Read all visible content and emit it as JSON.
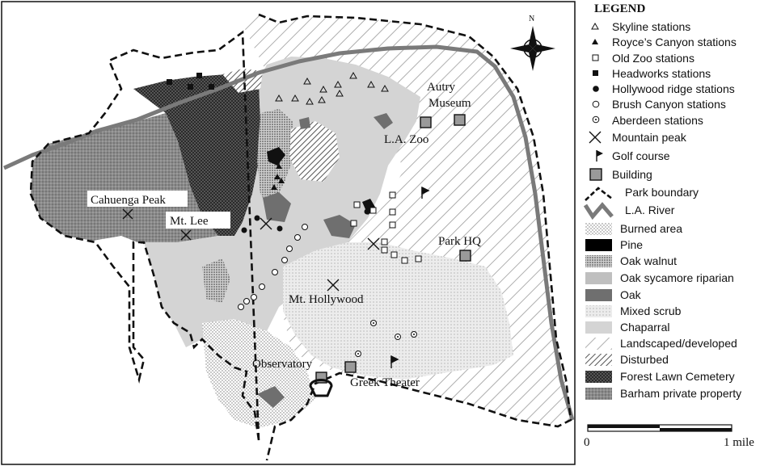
{
  "legend": {
    "title": "LEGEND",
    "items": [
      {
        "label": "Skyline stations",
        "symbol": "triangle-open-icon"
      },
      {
        "label": "Royce’s Canyon stations",
        "symbol": "triangle-filled-icon"
      },
      {
        "label": "Old Zoo stations",
        "symbol": "square-open-icon"
      },
      {
        "label": "Headworks stations",
        "symbol": "square-filled-icon"
      },
      {
        "label": "Hollywood ridge stations",
        "symbol": "circle-filled-icon"
      },
      {
        "label": "Brush Canyon stations",
        "symbol": "circle-open-icon"
      },
      {
        "label": "Aberdeen stations",
        "symbol": "circle-dot-icon"
      },
      {
        "label": "Mountain peak",
        "symbol": "x-cross-icon"
      },
      {
        "label": "Golf course",
        "symbol": "flag-icon"
      },
      {
        "label": "Building",
        "symbol": "building-square-icon"
      },
      {
        "label": "Park boundary",
        "symbol": "dashed-boundary-icon"
      },
      {
        "label": "L.A. River",
        "symbol": "zigzag-river-icon"
      },
      {
        "label": "Burned area",
        "symbol": "stipple-fine-swatch"
      },
      {
        "label": "Pine",
        "symbol": "black-swatch"
      },
      {
        "label": "Oak walnut",
        "symbol": "stipple-dense-swatch"
      },
      {
        "label": "Oak sycamore riparian",
        "symbol": "gray-light-swatch"
      },
      {
        "label": "Oak",
        "symbol": "gray-dark-swatch"
      },
      {
        "label": "Mixed scrub",
        "symbol": "stipple-light-swatch"
      },
      {
        "label": "Chaparral",
        "symbol": "gray-pale-swatch"
      },
      {
        "label": "Landscaped/developed",
        "symbol": "hatch-light-swatch"
      },
      {
        "label": "Disturbed",
        "symbol": "hatch-dense-swatch"
      },
      {
        "label": "Forest Lawn Cemetery",
        "symbol": "checker-dark-swatch"
      },
      {
        "label": "Barham private property",
        "symbol": "gray-stipple-swatch"
      }
    ]
  },
  "map": {
    "labels": {
      "autry_1": "Autry",
      "autry_2": "Museum",
      "la_zoo": "L.A. Zoo",
      "cahuenga_peak": "Cahuenga Peak",
      "mt_lee": "Mt. Lee",
      "park_hq": "Park HQ",
      "mt_hollywood": "Mt. Hollywood",
      "observatory": "Observatory",
      "greek_theater": "Greek Theater"
    },
    "north": "N"
  },
  "scale": {
    "start": "0",
    "end": "1 mile"
  },
  "colors": {
    "chaparral": "#d4d4d4",
    "oak": "#6f6f6f",
    "barham": "#8c8c8c",
    "forest_lawn": "#2b2b2b",
    "river": "#808080"
  }
}
